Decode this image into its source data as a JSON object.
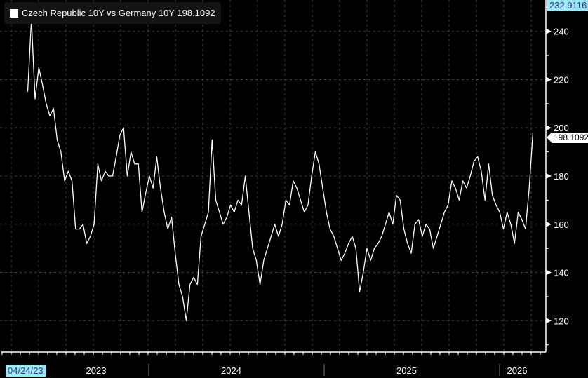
{
  "chart_data": {
    "type": "line",
    "title": "Czech Republic 10Y vs Germany 10Y 198.1092",
    "series": [
      {
        "name": "Czech Republic 10Y vs Germany 10Y",
        "last_value": "198.1092",
        "x_start": 2023.31,
        "x_end": 2026.19,
        "values": [
          215,
          245,
          212,
          225,
          218,
          210,
          205,
          208,
          195,
          190,
          178,
          182,
          178,
          158,
          158,
          160,
          152,
          155,
          160,
          185,
          178,
          182,
          180,
          180,
          188,
          197,
          200,
          180,
          190,
          185,
          185,
          165,
          173,
          180,
          175,
          188,
          175,
          165,
          158,
          163,
          148,
          135,
          130,
          120,
          135,
          138,
          135,
          155,
          160,
          165,
          195,
          170,
          165,
          160,
          163,
          168,
          165,
          170,
          168,
          180,
          165,
          150,
          145,
          135,
          145,
          150,
          155,
          160,
          155,
          160,
          170,
          168,
          178,
          175,
          170,
          165,
          168,
          180,
          190,
          185,
          175,
          165,
          158,
          155,
          150,
          145,
          148,
          152,
          155,
          150,
          132,
          140,
          150,
          145,
          150,
          152,
          155,
          160,
          165,
          160,
          172,
          170,
          158,
          152,
          148,
          160,
          162,
          155,
          160,
          158,
          150,
          155,
          160,
          165,
          168,
          178,
          175,
          170,
          178,
          175,
          180,
          186,
          188,
          182,
          170,
          185,
          172,
          168,
          165,
          158,
          165,
          160,
          152,
          165,
          162,
          158,
          175,
          198
        ]
      }
    ],
    "ylim": [
      107,
      253
    ],
    "y_ticks": [
      "120",
      "140",
      "160",
      "180",
      "200",
      "220",
      "240"
    ],
    "x_ticks": [
      {
        "label": "2023",
        "year": 2023.7
      },
      {
        "label": "2024",
        "year": 2024.47
      },
      {
        "label": "2025",
        "year": 2025.47
      },
      {
        "label": "2026",
        "year": 2026.1
      }
    ],
    "year_separators": [
      2024.0,
      2025.0,
      2026.0
    ],
    "start_date_label": "04/24/23",
    "top_value_label": "232.9116",
    "grid": true,
    "legend": "top-left",
    "line_color": "#ffffff",
    "bg_color": "#000000"
  }
}
